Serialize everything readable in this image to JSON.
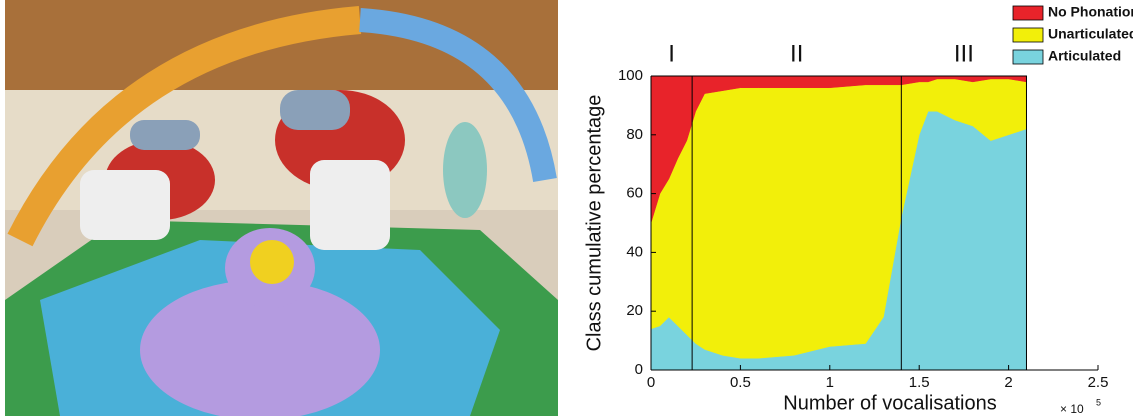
{
  "chart_data": {
    "type": "stacked-area",
    "x_label": "Number of vocalisations",
    "y_label": "Class cumulative percentage",
    "x_multiplier_label": "× 10",
    "x_multiplier_exponent": "5",
    "x": [
      0,
      0.05,
      0.1,
      0.15,
      0.2,
      0.25,
      0.3,
      0.4,
      0.5,
      0.6,
      0.8,
      1.0,
      1.2,
      1.3,
      1.4,
      1.5,
      1.55,
      1.6,
      1.7,
      1.8,
      1.9,
      2.0,
      2.1
    ],
    "series": [
      {
        "name": "Articulated",
        "color": "#79d3de",
        "values": [
          14,
          15,
          18,
          15,
          12,
          9,
          7,
          5,
          4,
          4,
          5,
          8,
          9,
          18,
          52,
          80,
          88,
          88,
          85,
          83,
          78,
          80,
          82
        ]
      },
      {
        "name": "Unarticulated",
        "color": "#f2ef0a",
        "values": [
          36,
          45,
          47,
          57,
          66,
          79,
          87,
          90,
          92,
          92,
          91,
          88,
          88,
          79,
          45,
          18,
          10,
          11,
          14,
          15,
          21,
          19,
          16
        ]
      },
      {
        "name": "No Phonation",
        "color": "#e8232a",
        "values": [
          50,
          40,
          35,
          28,
          22,
          12,
          6,
          5,
          4,
          4,
          4,
          4,
          3,
          3,
          3,
          2,
          2,
          1,
          1,
          2,
          1,
          1,
          2
        ]
      }
    ],
    "phase_lines": [
      0.23,
      1.4
    ],
    "phase_labels": [
      "I",
      "II",
      "III"
    ],
    "xlim": [
      0,
      2.5
    ],
    "xticks": [
      0,
      0.5,
      1,
      1.5,
      2,
      2.5
    ],
    "ylim": [
      0,
      100
    ],
    "yticks": [
      0,
      20,
      40,
      60,
      80,
      100
    ]
  }
}
